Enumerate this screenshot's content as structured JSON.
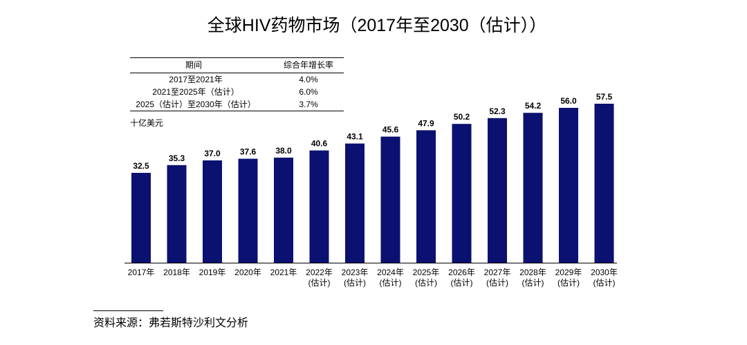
{
  "colors": {
    "bar": "#0b1170"
  },
  "cagr_table": {
    "headers": [
      "期间",
      "综合年增长率"
    ],
    "rows": [
      {
        "period": "2017至2021年",
        "cagr": "4.0%"
      },
      {
        "period": "2021至2025年（估计）",
        "cagr": "6.0%"
      },
      {
        "period": "2025（估计）至2030年（估计）",
        "cagr": "3.7%"
      }
    ]
  },
  "source": "资料来源：弗若斯特沙利文分析",
  "chart_data": {
    "type": "bar",
    "title": "全球HIV药物市场（2017年至2030（估计））",
    "ylabel": "十亿美元",
    "grid": false,
    "categories": [
      "2017年",
      "2018年",
      "2019年",
      "2020年",
      "2021年",
      "2022年(估计)",
      "2023年(估计)",
      "2024年(估计)",
      "2025年(估计)",
      "2026年(估计)",
      "2027年(估计)",
      "2028年(估计)",
      "2029年(估计)",
      "2030年(估计)"
    ],
    "values": [
      32.5,
      35.3,
      37.0,
      37.6,
      38.0,
      40.6,
      43.1,
      45.6,
      47.9,
      50.2,
      52.3,
      54.2,
      56.0,
      57.5
    ]
  }
}
